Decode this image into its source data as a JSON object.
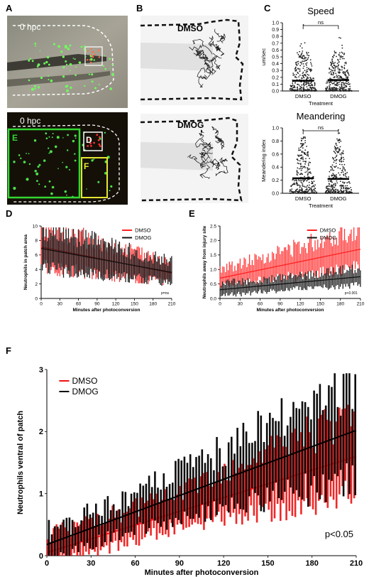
{
  "panels": {
    "A": {
      "letter": "A",
      "top_label": "0 hpc",
      "bottom_label": "0 hpc",
      "box_E": "E",
      "box_D": "D",
      "box_F": "F",
      "colors": {
        "E": "#32d732",
        "D": "#ffffff",
        "F": "#e6e632",
        "outline": "#ffffff"
      }
    },
    "B": {
      "letter": "B",
      "top_title": "DMSO",
      "bottom_title": "DMOG"
    },
    "C": {
      "letter": "C"
    },
    "D": {
      "letter": "D"
    },
    "E": {
      "letter": "E"
    },
    "F": {
      "letter": "F"
    }
  },
  "chart_data": [
    {
      "id": "C-speed",
      "type": "scatter",
      "title": "Speed",
      "ylabel": "um/sec",
      "xlabel": "Treatment",
      "categories": [
        "DMSO",
        "DMOG"
      ],
      "means": [
        0.15,
        0.16
      ],
      "ylim": [
        0,
        1.0
      ],
      "yticks": [
        "0.0",
        "0.1",
        "0.2",
        "0.3",
        "0.4",
        "0.5",
        "0.6",
        "0.7",
        "0.8",
        "0.9",
        "1.0"
      ],
      "significance": "ns"
    },
    {
      "id": "C-meander",
      "type": "scatter",
      "title": "Meandering",
      "ylabel": "Meandering index",
      "xlabel": "Treatment",
      "categories": [
        "DMSO",
        "DMOG"
      ],
      "means": [
        0.23,
        0.22
      ],
      "ylim": [
        0,
        1.0
      ],
      "yticks": [
        "0.0",
        "0.2",
        "0.4",
        "0.6",
        "0.8",
        "1.0"
      ],
      "significance": "ns"
    },
    {
      "id": "D",
      "type": "bar",
      "ylabel": "Neutrophils in patch area",
      "xlabel": "Minutes after photoconversion",
      "ylim": [
        0,
        10
      ],
      "yticks": [
        "0",
        "2",
        "4",
        "6",
        "8",
        "10"
      ],
      "xlim": [
        0,
        210
      ],
      "xticks": [
        "0",
        "30",
        "60",
        "90",
        "120",
        "150",
        "180",
        "210"
      ],
      "stat": "p=ns",
      "series": [
        {
          "name": "DMSO",
          "color": "#ff2222",
          "trend": [
            7.1,
            3.5
          ]
        },
        {
          "name": "DMOG",
          "color": "#111111",
          "trend": [
            6.9,
            3.6
          ]
        }
      ]
    },
    {
      "id": "E",
      "type": "bar",
      "ylabel": "Neutrophils away from injury site",
      "xlabel": "Minutes after photoconversion",
      "ylim": [
        0,
        2.5
      ],
      "yticks": [
        "0.0",
        "0.5",
        "1.0",
        "1.5",
        "2.0",
        "2.5"
      ],
      "xlim": [
        0,
        210
      ],
      "xticks": [
        "0",
        "30",
        "60",
        "90",
        "120",
        "150",
        "180",
        "210"
      ],
      "stat": "p<0.001",
      "series": [
        {
          "name": "DMSO",
          "color": "#ff2222",
          "trend": [
            0.7,
            1.7
          ]
        },
        {
          "name": "DMOG",
          "color": "#111111",
          "trend": [
            0.3,
            0.75
          ]
        }
      ]
    },
    {
      "id": "F",
      "type": "bar",
      "ylabel": "Neutrophils ventral of patch",
      "xlabel": "Minutes after photoconversion",
      "ylim": [
        0,
        3
      ],
      "yticks": [
        "0",
        "1",
        "2",
        "3"
      ],
      "xlim": [
        0,
        210
      ],
      "xticks": [
        "0",
        "30",
        "60",
        "90",
        "120",
        "150",
        "180",
        "210"
      ],
      "stat": "p<0.05",
      "series": [
        {
          "name": "DMSO",
          "color": "#ee1111",
          "trend": [
            0.05,
            1.6
          ]
        },
        {
          "name": "DMOG",
          "color": "#000000",
          "trend": [
            0.18,
            2.02
          ]
        }
      ]
    }
  ]
}
